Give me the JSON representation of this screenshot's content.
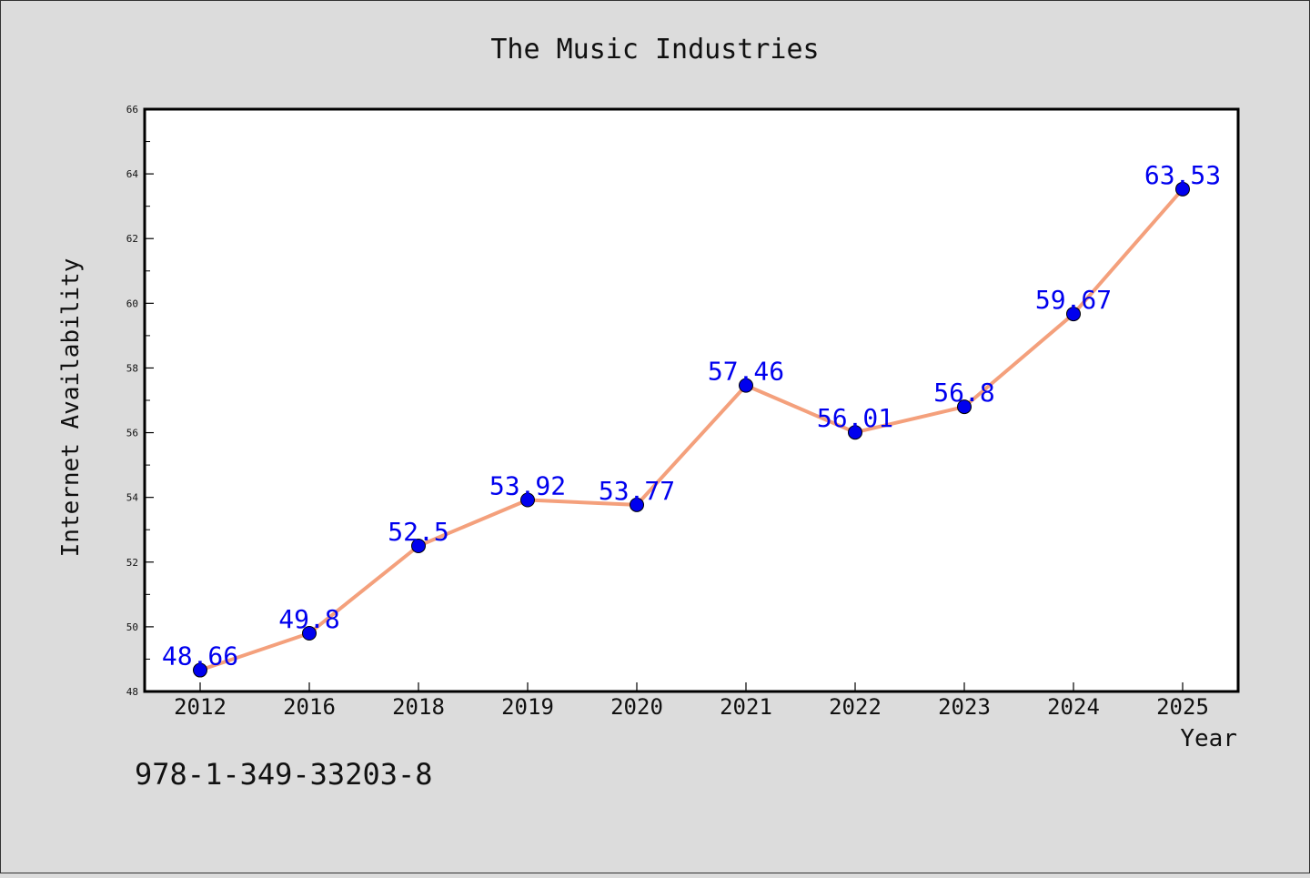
{
  "isbn": "978-1-349-33203-8",
  "chart_data": {
    "type": "line",
    "title": "The Music Industries",
    "xlabel": "Year",
    "ylabel": "Internet Availability",
    "categories": [
      "2012",
      "2016",
      "2018",
      "2019",
      "2020",
      "2021",
      "2022",
      "2023",
      "2024",
      "2025"
    ],
    "series": [
      {
        "values": [
          48.66,
          49.8,
          52.5,
          53.92,
          53.77,
          57.46,
          56.01,
          56.8,
          59.67,
          63.53
        ],
        "data_labels": [
          "48.66",
          "49.8",
          "52.5",
          "53.92",
          "53.77",
          "57.46",
          "56.01",
          "56.8",
          "59.67",
          "63.53"
        ]
      }
    ],
    "ylim": [
      48,
      66
    ],
    "yticks": [
      "48",
      "50",
      "52",
      "54",
      "56",
      "58",
      "60",
      "62",
      "64",
      "66"
    ],
    "grid": false,
    "colors": {
      "line": "#f4a07c",
      "marker": "#0000ee",
      "labels": "#0000ee",
      "background": "#dcdcdc",
      "plot_area": "#ffffff"
    }
  }
}
